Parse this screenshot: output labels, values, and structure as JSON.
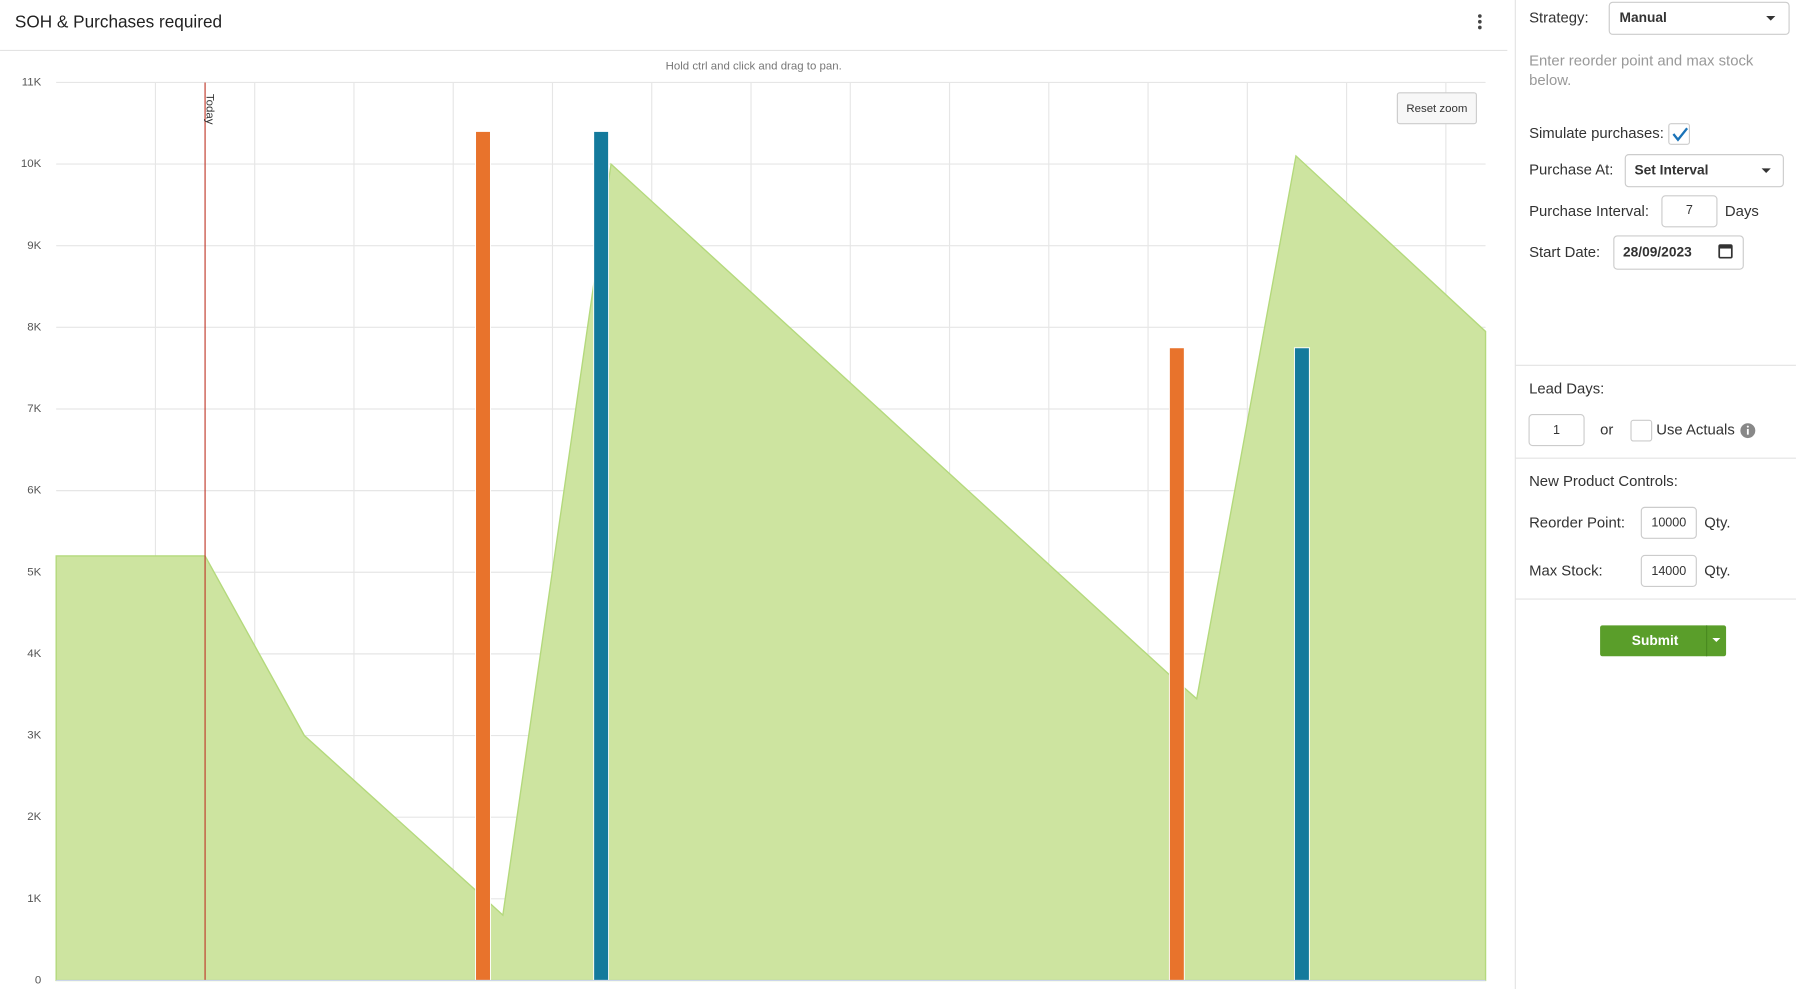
{
  "header": {
    "title": "SOH & Purchases required"
  },
  "chart_data": {
    "type": "combo",
    "annotation": "Hold ctrl and click and drag to pan.",
    "reset_button": "Reset zoom",
    "xlim": [
      0,
      14.4
    ],
    "xticks": [
      1,
      2,
      3,
      4,
      5,
      6,
      7,
      8,
      9,
      10,
      11,
      12,
      13,
      14
    ],
    "ylim": [
      0,
      11000
    ],
    "yticks": [
      0,
      {
        "value": 1000,
        "label": "1K"
      },
      {
        "value": 2000,
        "label": "2K"
      },
      {
        "value": 3000,
        "label": "3K"
      },
      {
        "value": 4000,
        "label": "4K"
      },
      {
        "value": 5000,
        "label": "5K"
      },
      {
        "value": 6000,
        "label": "6K"
      },
      {
        "value": 7000,
        "label": "7K"
      },
      {
        "value": 8000,
        "label": "8K"
      },
      {
        "value": 9000,
        "label": "9K"
      },
      {
        "value": 10000,
        "label": "10K"
      },
      {
        "value": 11000,
        "label": "11K"
      }
    ],
    "grid": true,
    "today_line": {
      "value": 1.5,
      "label": "Today",
      "color": "#c0392b"
    },
    "series": [
      {
        "type": "area",
        "color": "#cde4a0",
        "stroke": "#b4d97c",
        "x": [
          0,
          1.5,
          2.5,
          4.23,
          4.5,
          5.59,
          11.21,
          11.49,
          12.49,
          14.4
        ],
        "values": [
          5200,
          5200,
          3000,
          1100,
          800,
          10000,
          3750,
          3450,
          10100,
          7950
        ]
      },
      {
        "type": "bar",
        "color": "#e8732c",
        "x": [
          4.3,
          11.29
        ],
        "values": [
          10400,
          7750
        ]
      },
      {
        "type": "bar",
        "color": "#147a9c",
        "x": [
          5.49,
          12.55
        ],
        "values": [
          10400,
          7750
        ]
      }
    ]
  },
  "sidebar": {
    "strategy": {
      "label": "Strategy:",
      "value": "Manual"
    },
    "description": "Enter reorder point and max stock below.",
    "simulate": {
      "label": "Simulate purchases:",
      "checked": true
    },
    "purchase_at": {
      "label": "Purchase At:",
      "value": "Set Interval"
    },
    "purchase_interval": {
      "label": "Purchase Interval:",
      "value": "7",
      "unit": "Days"
    },
    "start_date": {
      "label": "Start Date:",
      "value": "28/09/2023"
    },
    "lead_days": {
      "label": "Lead Days:",
      "value": "1",
      "or": "or",
      "use_actuals": "Use Actuals",
      "use_actuals_checked": false
    },
    "new_product": {
      "label": "New Product Controls:"
    },
    "reorder_point": {
      "label": "Reorder Point:",
      "value": "10000",
      "unit": "Qty."
    },
    "max_stock": {
      "label": "Max Stock:",
      "value": "14000",
      "unit": "Qty."
    },
    "submit": "Submit"
  }
}
